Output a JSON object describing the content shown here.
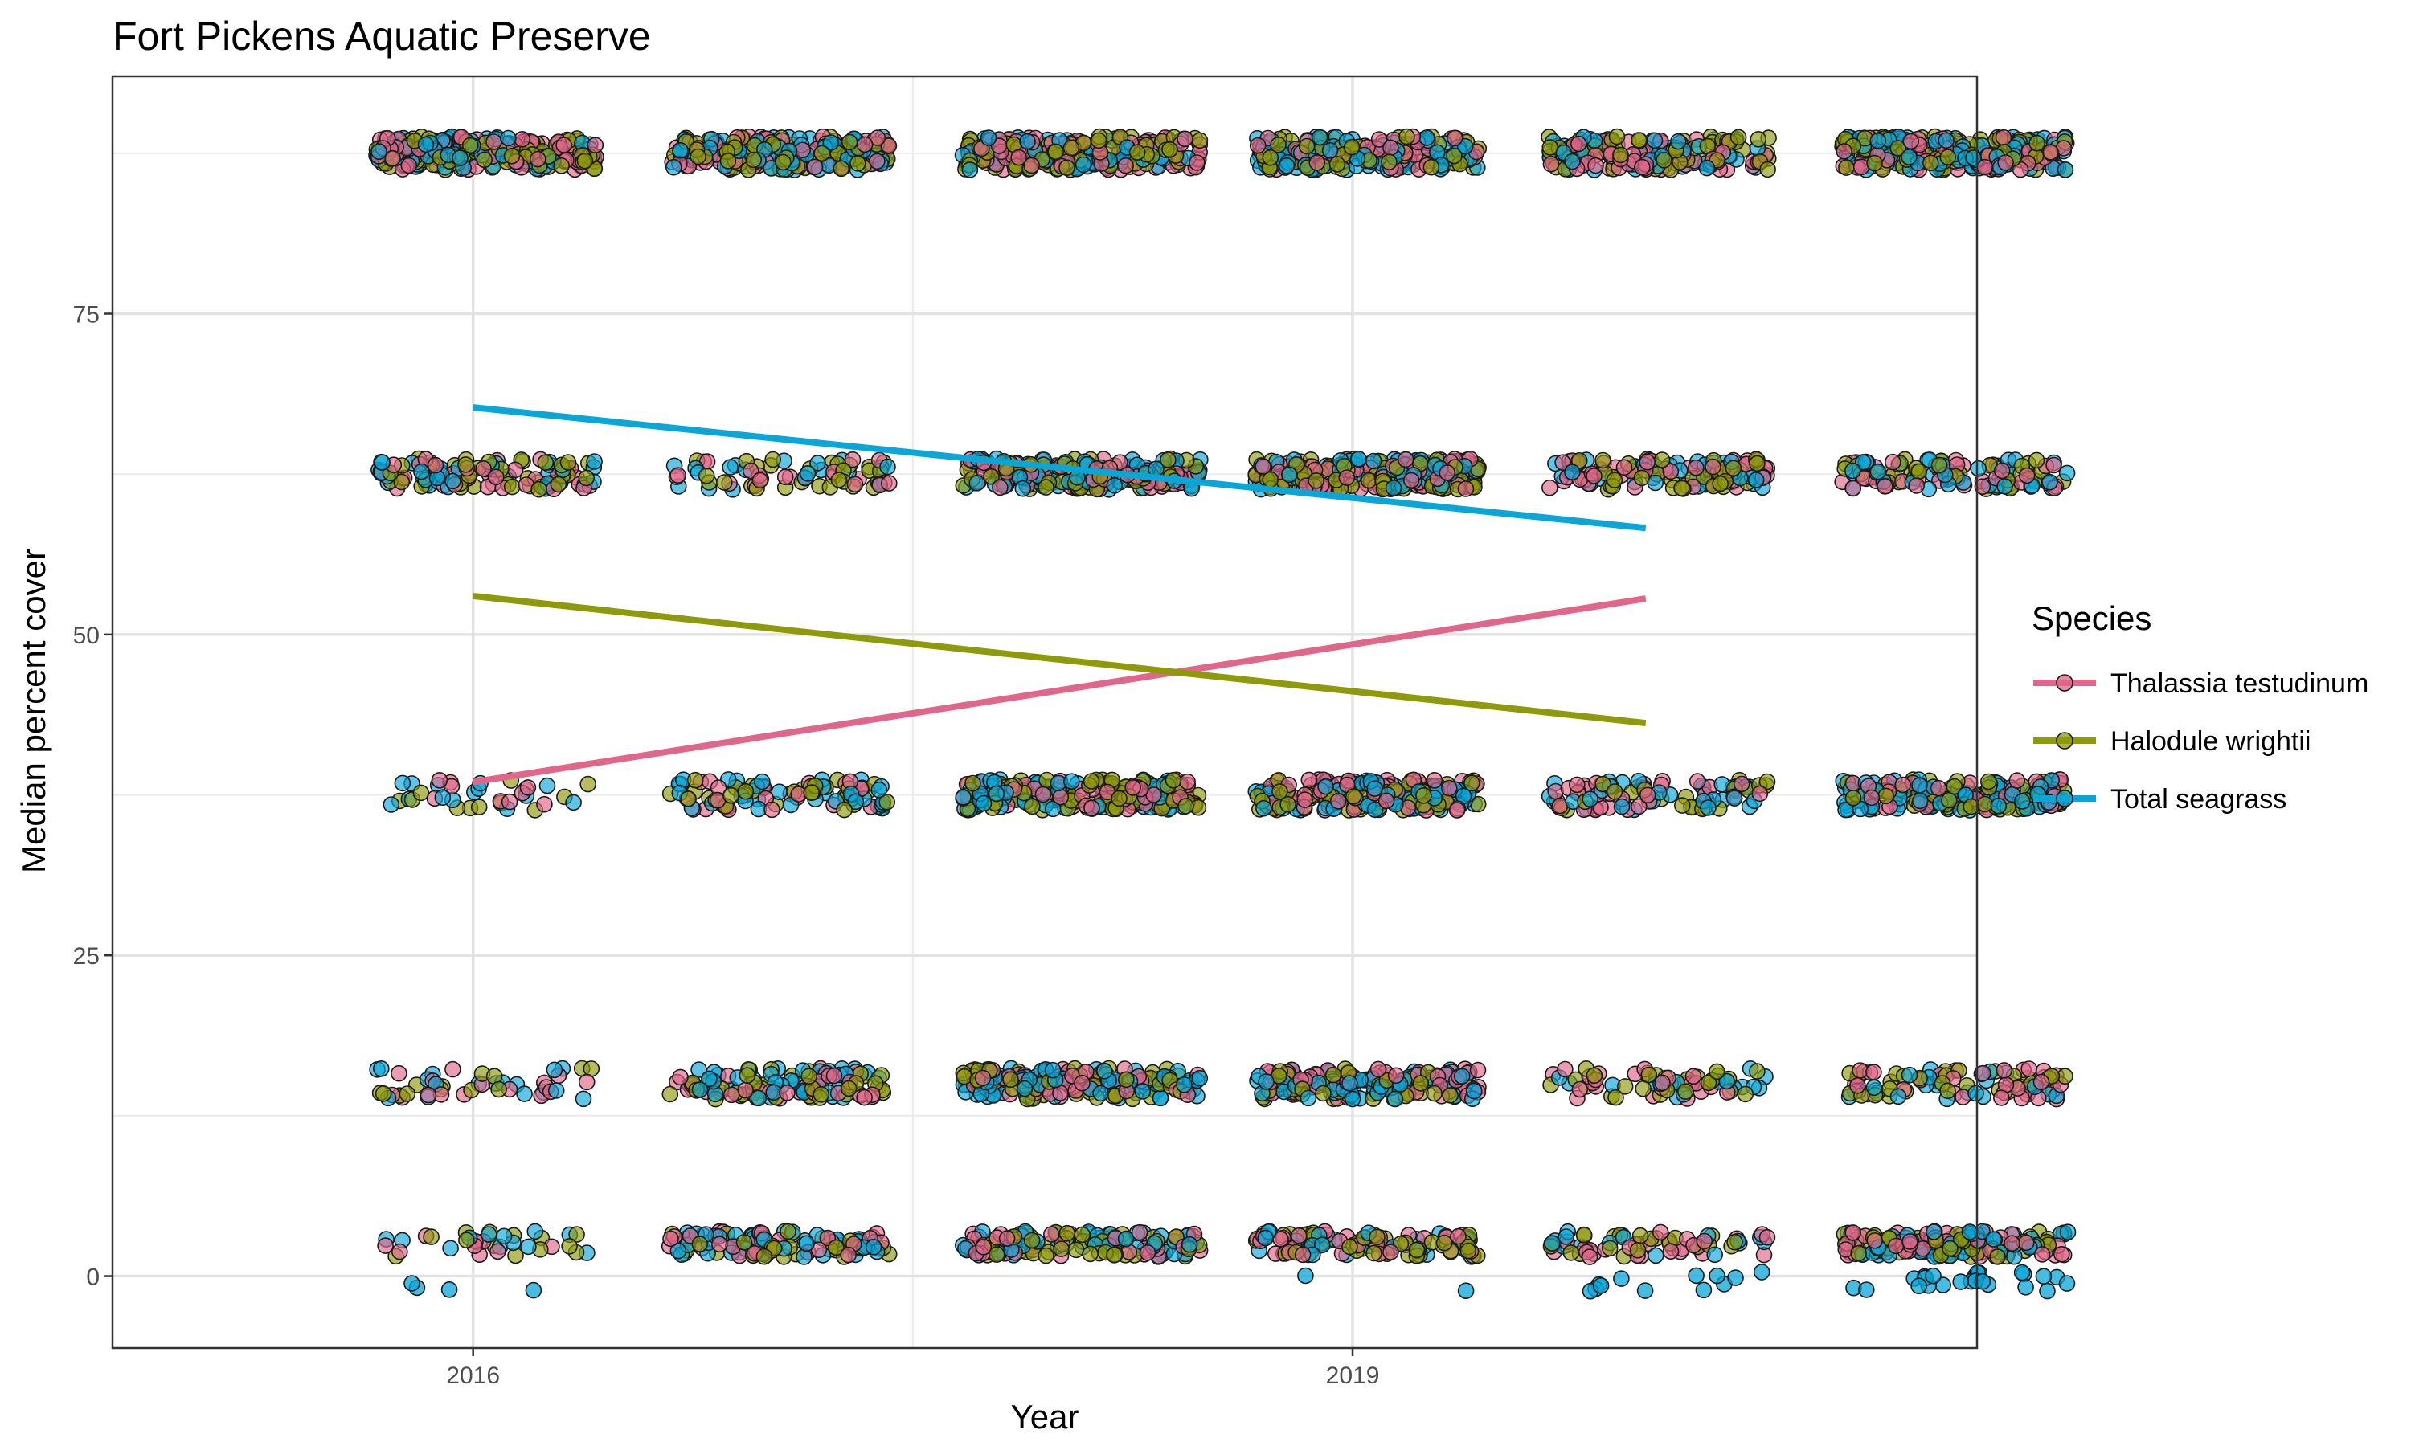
{
  "chart_data": {
    "type": "scatter",
    "title": "Fort Pickens Aquatic Preserve",
    "xlabel": "Year",
    "ylabel": "Median percent cover",
    "xlim": [
      2014.77,
      2021.13
    ],
    "ylim": [
      -5.6,
      93.5
    ],
    "x_ticks": [
      2016,
      2019
    ],
    "x_tick_labels": [
      "2016",
      "2019"
    ],
    "x_minor_gridlines": [
      2017.5
    ],
    "y_ticks": [
      0,
      25,
      50,
      75
    ],
    "y_tick_labels": [
      "0",
      "25",
      "50",
      "75"
    ],
    "y_minor_gridlines": [
      12.5,
      37.5,
      62.5,
      87.5
    ],
    "grid": true,
    "legend": {
      "title": "Species",
      "position": "right",
      "entries": [
        "Thalassia testudinum",
        "Halodule wrightii",
        "Total seagrass"
      ]
    },
    "point_groups_note": "",
    "series": [
      {
        "name": "Thalassia testudinum",
        "color": "#e0678a",
        "trend": {
          "x": [
            2016,
            2020
          ],
          "y": [
            38.5,
            52.8
          ]
        }
      },
      {
        "name": "Halodule wrightii",
        "color": "#8f9a0a",
        "trend": {
          "x": [
            2016,
            2020
          ],
          "y": [
            53.0,
            43.1
          ]
        }
      },
      {
        "name": "Total seagrass",
        "color": "#0aa6d8",
        "trend": {
          "x": [
            2016,
            2020
          ],
          "y": [
            67.7,
            58.3
          ]
        }
      }
    ],
    "point_clusters": {
      "x_groups": [
        {
          "x_min": 2015.67,
          "x_max": 2016.42
        },
        {
          "x_min": 2016.67,
          "x_max": 2017.42
        },
        {
          "x_min": 2017.67,
          "x_max": 2018.48
        },
        {
          "x_min": 2018.67,
          "x_max": 2019.43
        },
        {
          "x_min": 2019.67,
          "x_max": 2020.42
        },
        {
          "x_min": 2020.67,
          "x_max": 2021.44
        }
      ],
      "levels": [
        87.5,
        62.5,
        37.5,
        15,
        2.5
      ],
      "density": [
        [
          1.0,
          1.0,
          1.0,
          1.0,
          0.8,
          1.2
        ],
        [
          0.5,
          0.3,
          1.0,
          1.1,
          0.6,
          0.5
        ],
        [
          0.15,
          0.4,
          1.0,
          1.0,
          0.4,
          0.9
        ],
        [
          0.2,
          0.5,
          0.8,
          0.8,
          0.3,
          0.4
        ],
        [
          0.15,
          0.5,
          0.6,
          0.5,
          0.3,
          0.7
        ]
      ],
      "low_points_near_zero": [
        0.1,
        0.0,
        0.0,
        0.05,
        0.3,
        0.6
      ]
    }
  }
}
